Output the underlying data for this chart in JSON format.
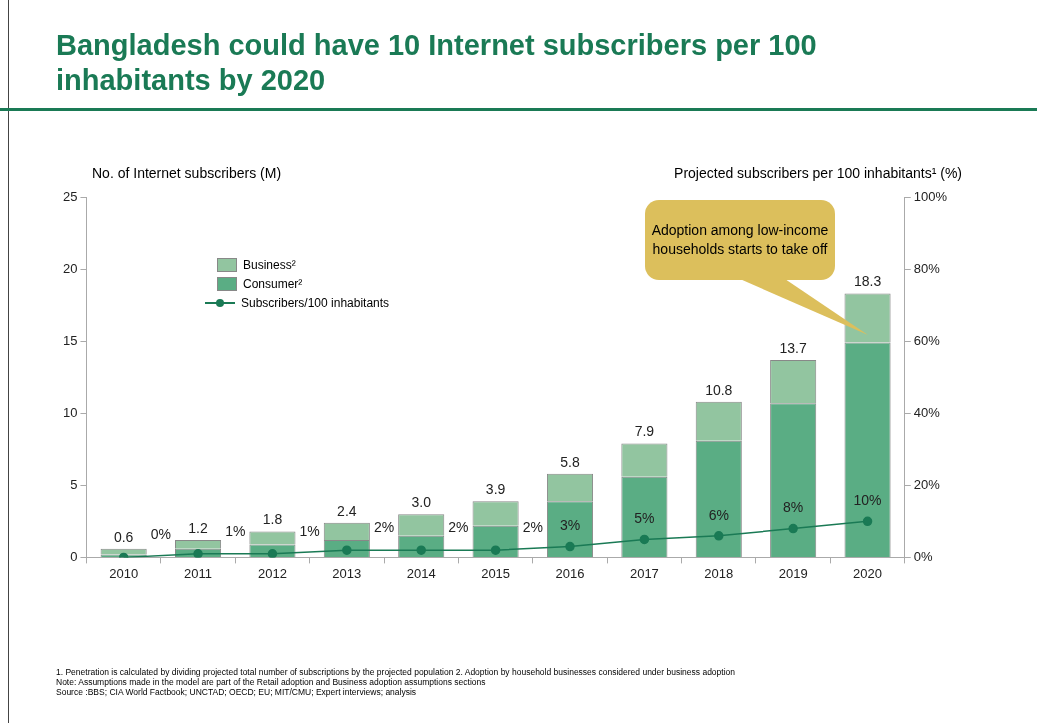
{
  "chart_data": {
    "type": "bar",
    "title": "Bangladesh could have 10 Internet subscribers per 100 inhabitants by 2020",
    "ylabel": "No. of Internet subscribers (M)",
    "y2label": "Projected subscribers per 100 inhabitants¹ (%)",
    "categories": [
      "2010",
      "2011",
      "2012",
      "2013",
      "2014",
      "2015",
      "2016",
      "2017",
      "2018",
      "2019",
      "2020"
    ],
    "stacked": true,
    "series": [
      {
        "name": "Consumer²",
        "color": "#5aad84",
        "values": [
          0.2,
          0.6,
          0.9,
          1.2,
          1.5,
          2.2,
          3.9,
          5.6,
          8.1,
          10.7,
          14.9
        ]
      },
      {
        "name": "Business²",
        "color": "#92c5a0",
        "values": [
          0.4,
          0.6,
          0.9,
          1.2,
          1.5,
          1.7,
          1.9,
          2.3,
          2.7,
          3.0,
          3.4
        ]
      },
      {
        "name": "Subscribers/100 inhabitants",
        "type": "line",
        "axis": "y2",
        "color": "#1a7a55",
        "values": [
          0,
          1,
          1,
          2,
          2,
          2,
          3,
          5,
          6,
          8,
          10
        ],
        "value_labels": [
          "0%",
          "1%",
          "1%",
          "2%",
          "2%",
          "2%",
          "3%",
          "5%",
          "6%",
          "8%",
          "10%"
        ]
      }
    ],
    "totals": [
      "0.6",
      "1.2",
      "1.8",
      "2.4",
      "3.0",
      "3.9",
      "5.8",
      "7.9",
      "10.8",
      "13.7",
      "18.3"
    ],
    "ylim": [
      0,
      25
    ],
    "yticks": [
      0,
      5,
      10,
      15,
      20,
      25
    ],
    "y2lim": [
      0,
      100
    ],
    "y2ticks": [
      {
        "value": 0,
        "label": "0%"
      },
      {
        "value": 20,
        "label": "20%"
      },
      {
        "value": 40,
        "label": "40%"
      },
      {
        "value": 60,
        "label": "60%"
      },
      {
        "value": 80,
        "label": "80%"
      },
      {
        "value": 100,
        "label": "100%"
      }
    ],
    "grid": false,
    "legend": "top left",
    "marker": "circle",
    "line_style": "solid",
    "annotations": [
      "Adoption among low-income households starts to take off",
      "1. Penetration is calculated by dividing projected total number of subscriptions by the projected population  2. Adoption by household businesses considered under business adoption",
      "Note: Assumptions made in the model are part of the Retail adoption and Business adoption assumptions sections",
      "Source :BBS; CIA World Factbook; UNCTAD; OECD; EU; MIT/CMU; Expert interviews; analysis"
    ]
  }
}
